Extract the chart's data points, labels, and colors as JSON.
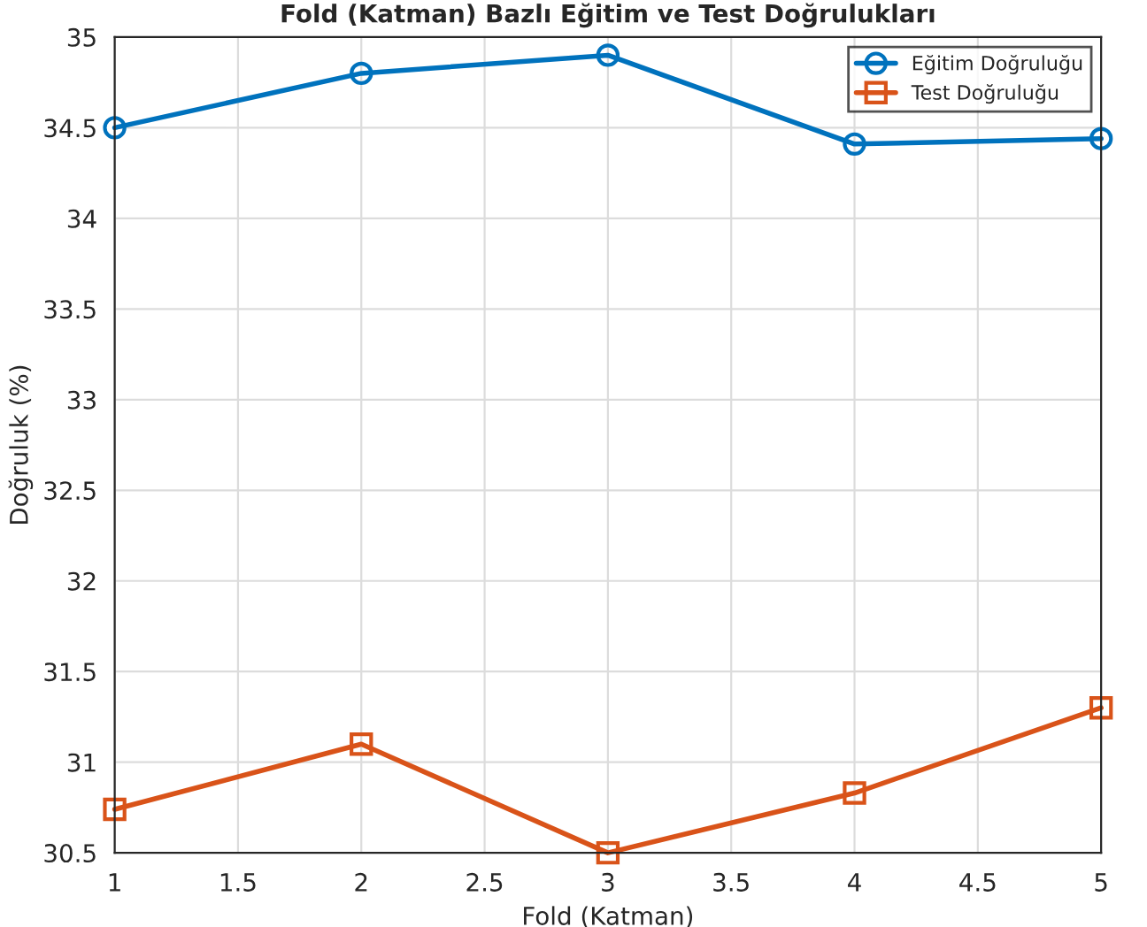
{
  "chart_data": {
    "type": "line",
    "title": "Fold (Katman) Bazlı Eğitim ve Test Doğrulukları",
    "xlabel": "Fold (Katman)",
    "ylabel": "Doğruluk (%)",
    "x": [
      1,
      2,
      3,
      4,
      5
    ],
    "series": [
      {
        "name": "Eğitim Doğruluğu",
        "color": "#0072bd",
        "marker": "circle",
        "values": [
          34.5,
          34.8,
          34.9,
          34.41,
          34.44
        ]
      },
      {
        "name": "Test Doğruluğu",
        "color": "#d95319",
        "marker": "square",
        "values": [
          30.74,
          31.1,
          30.5,
          30.83,
          31.3
        ]
      }
    ],
    "xlim": [
      1,
      5
    ],
    "xticks": [
      1,
      {
        "value": 1.5,
        "label": "1.5"
      },
      2,
      {
        "value": 2.5,
        "label": "2.5"
      },
      3,
      {
        "value": 3.5,
        "label": "3.5"
      },
      4,
      {
        "value": 4.5,
        "label": "4.5"
      },
      5
    ],
    "ylim": [
      30.5,
      35
    ],
    "yticks": [
      {
        "value": 30.5,
        "label": "30.5"
      },
      31,
      {
        "value": 31.5,
        "label": "31.5"
      },
      32,
      {
        "value": 32.5,
        "label": "32.5"
      },
      33,
      {
        "value": 33.5,
        "label": "33.5"
      },
      34,
      {
        "value": 34.5,
        "label": "34.5"
      },
      35
    ],
    "grid": true,
    "legend": "top right",
    "line_style": "solid"
  }
}
